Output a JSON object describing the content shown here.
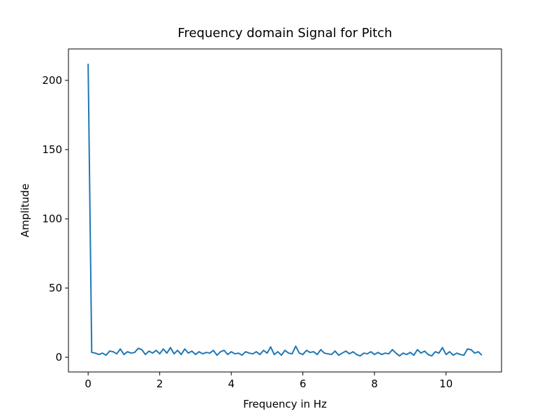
{
  "chart_data": {
    "type": "line",
    "title": "Frequency domain Signal for Pitch",
    "x_label": "Frequency in Hz",
    "y_label": "Amplitude",
    "x": [
      0,
      0.1,
      0.2,
      0.3,
      0.4,
      0.5,
      0.6,
      0.7,
      0.8,
      0.9,
      1.0,
      1.1,
      1.2,
      1.3,
      1.4,
      1.5,
      1.6,
      1.7,
      1.8,
      1.9,
      2.0,
      2.1,
      2.2,
      2.3,
      2.4,
      2.5,
      2.6,
      2.7,
      2.8,
      2.9,
      3.0,
      3.1,
      3.2,
      3.3,
      3.4,
      3.5,
      3.6,
      3.7,
      3.8,
      3.9,
      4.0,
      4.1,
      4.2,
      4.3,
      4.4,
      4.5,
      4.6,
      4.7,
      4.8,
      4.9,
      5.0,
      5.1,
      5.2,
      5.3,
      5.4,
      5.5,
      5.6,
      5.7,
      5.8,
      5.9,
      6.0,
      6.1,
      6.2,
      6.3,
      6.4,
      6.5,
      6.6,
      6.7,
      6.8,
      6.9,
      7.0,
      7.1,
      7.2,
      7.3,
      7.4,
      7.5,
      7.6,
      7.7,
      7.8,
      7.9,
      8.0,
      8.1,
      8.2,
      8.3,
      8.4,
      8.5,
      8.6,
      8.7,
      8.8,
      8.9,
      9.0,
      9.1,
      9.2,
      9.3,
      9.4,
      9.5,
      9.6,
      9.7,
      9.8,
      9.9,
      10.0,
      10.1,
      10.2,
      10.3,
      10.4,
      10.5,
      10.6,
      10.7,
      10.8,
      10.9,
      11.0
    ],
    "series": [
      {
        "color": "#1f77b4",
        "values": [
          212,
          3.5,
          3,
          2,
          3,
          1.5,
          4.5,
          4,
          2.5,
          6,
          2,
          4,
          3,
          3.5,
          6.5,
          5.5,
          2,
          4.5,
          3,
          5,
          2.5,
          6,
          3,
          7,
          2.5,
          5,
          2,
          6,
          3,
          4.5,
          2,
          4,
          2.5,
          3.5,
          3,
          5,
          1.5,
          4,
          5,
          2,
          4,
          2.5,
          3,
          1.5,
          4,
          3,
          2.5,
          4,
          2,
          5,
          3,
          7.5,
          2,
          4,
          1.5,
          5,
          3,
          2.5,
          8,
          3,
          2,
          5,
          3.5,
          4,
          2,
          5.5,
          3,
          2.5,
          2,
          4.5,
          1.5,
          3,
          4.5,
          2.5,
          4,
          2,
          1,
          3,
          2.5,
          4,
          2,
          3.5,
          2,
          3,
          2.5,
          5.5,
          3,
          1,
          3,
          2,
          3.5,
          1.5,
          5.5,
          3,
          4.5,
          2,
          1,
          4,
          3,
          7,
          2,
          4,
          1.5,
          3,
          2,
          1.5,
          6,
          5.5,
          3,
          4,
          1.5
        ]
      }
    ],
    "xlim": [
      -0.55,
      11.55
    ],
    "ylim": [
      -10.6,
      222.7
    ],
    "xticks": [
      0,
      2,
      4,
      6,
      8,
      10
    ],
    "yticks": [
      0,
      50,
      100,
      150,
      200
    ]
  }
}
